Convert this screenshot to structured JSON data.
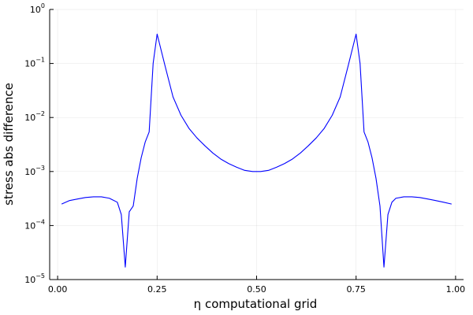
{
  "chart_data": {
    "type": "line",
    "title": "",
    "xlabel": "η computational grid",
    "ylabel": "stress abs difference",
    "x_scale": "linear",
    "y_scale": "log10",
    "xlim": [
      -0.02,
      1.02
    ],
    "ylim": [
      1e-05,
      1
    ],
    "x_ticks": [
      {
        "value": 0,
        "label": "0.00"
      },
      {
        "value": 0.25,
        "label": "0.25"
      },
      {
        "value": 0.5,
        "label": "0.50"
      },
      {
        "value": 0.75,
        "label": "0.75"
      },
      {
        "value": 1,
        "label": "1.00"
      }
    ],
    "y_ticks": [
      {
        "value": 1e-05,
        "base": "10",
        "exp": "−5"
      },
      {
        "value": 0.0001,
        "base": "10",
        "exp": "−4"
      },
      {
        "value": 0.001,
        "base": "10",
        "exp": "−3"
      },
      {
        "value": 0.01,
        "base": "10",
        "exp": "−2"
      },
      {
        "value": 0.1,
        "base": "10",
        "exp": "−1"
      },
      {
        "value": 1,
        "base": "10",
        "exp": "0"
      }
    ],
    "grid": true,
    "legend": "none",
    "series": [
      {
        "color": "#0000ff",
        "x": [
          0.01,
          0.03,
          0.05,
          0.07,
          0.09,
          0.11,
          0.13,
          0.15,
          0.16,
          0.17,
          0.18,
          0.19,
          0.2,
          0.21,
          0.22,
          0.23,
          0.24,
          0.25,
          0.27,
          0.29,
          0.31,
          0.33,
          0.35,
          0.37,
          0.39,
          0.41,
          0.43,
          0.45,
          0.47,
          0.49,
          0.5,
          0.51,
          0.53,
          0.55,
          0.57,
          0.59,
          0.61,
          0.63,
          0.65,
          0.67,
          0.69,
          0.71,
          0.73,
          0.75,
          0.76,
          0.77,
          0.78,
          0.79,
          0.8,
          0.81,
          0.82,
          0.83,
          0.84,
          0.85,
          0.87,
          0.89,
          0.91,
          0.93,
          0.95,
          0.97,
          0.99
        ],
        "y": [
          0.00025,
          0.00029,
          0.00031,
          0.00033,
          0.00034,
          0.00034,
          0.00032,
          0.00027,
          0.00016,
          1.7e-05,
          0.00018,
          0.00023,
          0.00075,
          0.0018,
          0.0035,
          0.0054,
          0.1,
          0.35,
          0.09,
          0.024,
          0.011,
          0.0063,
          0.0042,
          0.003,
          0.0022,
          0.0017,
          0.0014,
          0.0012,
          0.00105,
          0.001,
          0.001,
          0.001,
          0.00105,
          0.0012,
          0.0014,
          0.0017,
          0.0022,
          0.003,
          0.0042,
          0.0063,
          0.011,
          0.024,
          0.09,
          0.35,
          0.1,
          0.0054,
          0.0035,
          0.0018,
          0.00075,
          0.00023,
          1.7e-05,
          0.00016,
          0.00027,
          0.00032,
          0.00034,
          0.00034,
          0.00033,
          0.00031,
          0.00029,
          0.00027,
          0.00025
        ]
      }
    ]
  }
}
